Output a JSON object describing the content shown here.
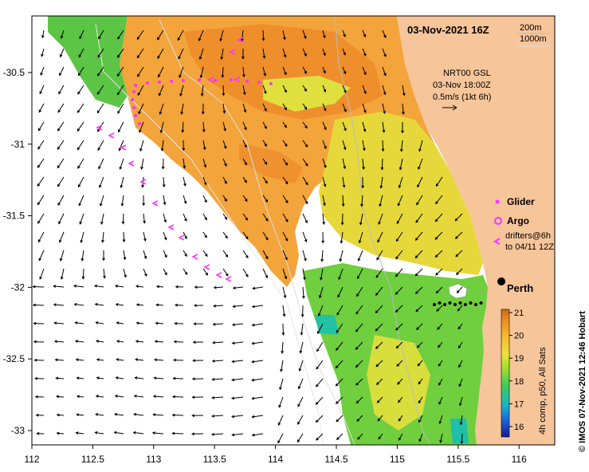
{
  "header": {
    "date_label": "03-Nov-2021 16Z",
    "isobath_1": "200m",
    "isobath_2": "1000m"
  },
  "current_legend": {
    "line1": "NRT00 GSL",
    "line2": "03-Nov 18:00Z",
    "line3": "0.5m/s (1kt 6h)"
  },
  "symbol_legend": {
    "glider": "Glider",
    "argo": "Argo",
    "drifters_line1": "drifters@6h",
    "drifters_line2": "to 04/11 12Z"
  },
  "place": {
    "perth": "Perth"
  },
  "colorbar": {
    "ticks": [
      "21",
      "20",
      "19",
      "18",
      "17",
      "16"
    ],
    "caption": "4h comp, p50, All Sats"
  },
  "footer": {
    "credit": "© IMOS 07-Nov-2021 12:46 Hobart"
  },
  "axes": {
    "x_ticks": [
      "112",
      "112.5",
      "113",
      "113.5",
      "114",
      "114.5",
      "115",
      "115.5",
      "116"
    ],
    "y_ticks": [
      "-30.5",
      "-31",
      "-31.5",
      "-32",
      "-32.5",
      "-33"
    ]
  },
  "colors": {
    "land": "#f7c59a",
    "sst_warm": "#f29a2e",
    "sst_mid": "#f5be2e",
    "sst_yellow": "#e8e23a",
    "sst_green": "#6fd13a",
    "sst_teal": "#1fbf9a",
    "markers": "#ff33ff"
  }
}
